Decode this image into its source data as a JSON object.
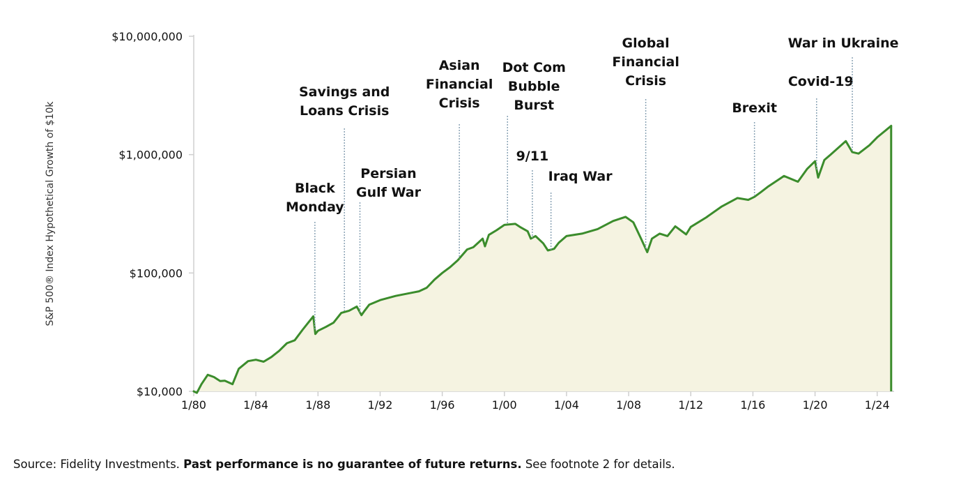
{
  "chart_data": {
    "type": "area",
    "ylabel": "S&P 500® Index Hypothetical Growth of $10k",
    "y_scale": "log",
    "ylim": [
      10000,
      10000000
    ],
    "y_ticks": [
      {
        "value": 10000,
        "label": "$10,000"
      },
      {
        "value": 100000,
        "label": "$100,000"
      },
      {
        "value": 1000000,
        "label": "$1,000,000"
      },
      {
        "value": 10000000,
        "label": "$10,000,000"
      }
    ],
    "xlim": [
      1980.0,
      2025.0
    ],
    "x_ticks": [
      {
        "value": 1980,
        "label": "1/80"
      },
      {
        "value": 1984,
        "label": "1/84"
      },
      {
        "value": 1988,
        "label": "1/88"
      },
      {
        "value": 1992,
        "label": "1/92"
      },
      {
        "value": 1996,
        "label": "1/96"
      },
      {
        "value": 2000,
        "label": "1/00"
      },
      {
        "value": 2004,
        "label": "1/04"
      },
      {
        "value": 2008,
        "label": "1/08"
      },
      {
        "value": 2012,
        "label": "1/12"
      },
      {
        "value": 2016,
        "label": "1/16"
      },
      {
        "value": 2020,
        "label": "1/20"
      },
      {
        "value": 2024,
        "label": "1/24"
      }
    ],
    "series": [
      {
        "points": [
          [
            1980.0,
            10000
          ],
          [
            1980.2,
            9700
          ],
          [
            1980.5,
            11500
          ],
          [
            1980.9,
            13800
          ],
          [
            1981.3,
            13200
          ],
          [
            1981.7,
            12200
          ],
          [
            1982.0,
            12300
          ],
          [
            1982.5,
            11500
          ],
          [
            1982.9,
            15500
          ],
          [
            1983.5,
            18000
          ],
          [
            1984.0,
            18500
          ],
          [
            1984.5,
            17800
          ],
          [
            1985.0,
            19500
          ],
          [
            1985.5,
            22000
          ],
          [
            1986.0,
            25500
          ],
          [
            1986.5,
            27000
          ],
          [
            1987.0,
            33000
          ],
          [
            1987.3,
            37000
          ],
          [
            1987.7,
            43000
          ],
          [
            1987.83,
            30500
          ],
          [
            1988.0,
            32500
          ],
          [
            1988.5,
            35000
          ],
          [
            1989.0,
            38000
          ],
          [
            1989.5,
            46000
          ],
          [
            1990.0,
            48000
          ],
          [
            1990.5,
            52000
          ],
          [
            1990.8,
            44000
          ],
          [
            1991.0,
            48000
          ],
          [
            1991.3,
            54000
          ],
          [
            1992.0,
            59000
          ],
          [
            1993.0,
            64000
          ],
          [
            1994.0,
            68000
          ],
          [
            1994.5,
            70000
          ],
          [
            1995.0,
            75000
          ],
          [
            1995.5,
            88000
          ],
          [
            1996.0,
            100000
          ],
          [
            1996.5,
            112000
          ],
          [
            1997.0,
            128000
          ],
          [
            1997.6,
            158000
          ],
          [
            1998.0,
            165000
          ],
          [
            1998.6,
            195000
          ],
          [
            1998.75,
            168000
          ],
          [
            1999.0,
            210000
          ],
          [
            1999.5,
            230000
          ],
          [
            2000.0,
            255000
          ],
          [
            2000.7,
            260000
          ],
          [
            2001.0,
            245000
          ],
          [
            2001.5,
            225000
          ],
          [
            2001.7,
            195000
          ],
          [
            2002.0,
            205000
          ],
          [
            2002.5,
            178000
          ],
          [
            2002.8,
            155000
          ],
          [
            2003.2,
            160000
          ],
          [
            2003.5,
            180000
          ],
          [
            2004.0,
            205000
          ],
          [
            2005.0,
            215000
          ],
          [
            2006.0,
            235000
          ],
          [
            2007.0,
            275000
          ],
          [
            2007.8,
            298000
          ],
          [
            2008.3,
            268000
          ],
          [
            2008.8,
            195000
          ],
          [
            2009.2,
            150000
          ],
          [
            2009.5,
            195000
          ],
          [
            2010.0,
            215000
          ],
          [
            2010.5,
            205000
          ],
          [
            2011.0,
            248000
          ],
          [
            2011.7,
            212000
          ],
          [
            2012.0,
            245000
          ],
          [
            2013.0,
            295000
          ],
          [
            2014.0,
            365000
          ],
          [
            2015.0,
            430000
          ],
          [
            2015.7,
            415000
          ],
          [
            2016.1,
            440000
          ],
          [
            2016.5,
            480000
          ],
          [
            2017.0,
            540000
          ],
          [
            2018.0,
            660000
          ],
          [
            2018.9,
            590000
          ],
          [
            2019.5,
            760000
          ],
          [
            2020.0,
            880000
          ],
          [
            2020.2,
            640000
          ],
          [
            2020.6,
            900000
          ],
          [
            2021.0,
            1000000
          ],
          [
            2021.98,
            1300000
          ],
          [
            2022.4,
            1050000
          ],
          [
            2022.8,
            1020000
          ],
          [
            2023.5,
            1200000
          ],
          [
            2024.0,
            1400000
          ],
          [
            2024.9,
            1750000
          ]
        ]
      }
    ],
    "annotations": [
      {
        "x": 1987.8,
        "lines": [
          "Black",
          "Monday"
        ]
      },
      {
        "x": 1989.7,
        "lines": [
          "Savings and",
          "Loans Crisis"
        ]
      },
      {
        "x": 1990.7,
        "lines": [
          "Persian",
          "Gulf War"
        ]
      },
      {
        "x": 1997.1,
        "lines": [
          "Asian",
          "Financial",
          "Crisis"
        ]
      },
      {
        "x": 2000.2,
        "lines": [
          "Dot Com",
          "Bubble",
          "Burst"
        ]
      },
      {
        "x": 2001.8,
        "lines": [
          "9/11"
        ]
      },
      {
        "x": 2003.0,
        "lines": [
          "Iraq War"
        ]
      },
      {
        "x": 2009.1,
        "lines": [
          "Global",
          "Financial",
          "Crisis"
        ]
      },
      {
        "x": 2016.1,
        "lines": [
          "Brexit"
        ]
      },
      {
        "x": 2020.1,
        "lines": [
          "Covid-19"
        ]
      },
      {
        "x": 2022.4,
        "lines": [
          "War in Ukraine"
        ]
      }
    ],
    "colors": {
      "line": "#3b8c2c",
      "fill": "#f5f3e1",
      "axis": "#cfcfcf",
      "annotation_line": "#8aa3b5"
    }
  },
  "footer": {
    "source_prefix": "Source: Fidelity Investments. ",
    "source_bold": "Past performance is no guarantee of future returns.",
    "source_suffix": " See footnote 2 for details."
  }
}
